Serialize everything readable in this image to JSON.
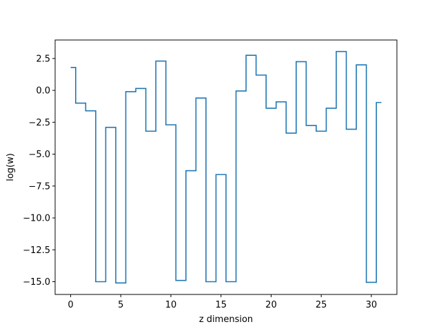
{
  "chart_data": {
    "type": "line",
    "drawstyle": "steps-mid",
    "xlabel": "z dimension",
    "ylabel": "log(w)",
    "xlim": [
      -1.55,
      32.55
    ],
    "ylim": [
      -16.0,
      3.95
    ],
    "xticks": [
      0,
      5,
      10,
      15,
      20,
      25,
      30
    ],
    "yticks": [
      -15.0,
      -12.5,
      -10.0,
      -7.5,
      -5.0,
      -2.5,
      0.0,
      2.5
    ],
    "xtick_labels": [
      "0",
      "5",
      "10",
      "15",
      "20",
      "25",
      "30"
    ],
    "ytick_labels": [
      "−15.0",
      "−12.5",
      "−10.0",
      "−7.5",
      "−5.0",
      "−2.5",
      "0.0",
      "2.5"
    ],
    "grid": false,
    "series": [
      {
        "color": "#1f77b4",
        "x": [
          0,
          1,
          2,
          3,
          4,
          5,
          6,
          7,
          8,
          9,
          10,
          11,
          12,
          13,
          14,
          15,
          16,
          17,
          18,
          19,
          20,
          21,
          22,
          23,
          24,
          25,
          26,
          27,
          28,
          29,
          30,
          31
        ],
        "values": [
          1.8,
          -1.0,
          -1.6,
          -15.0,
          -2.9,
          -15.1,
          -0.1,
          0.15,
          -3.2,
          2.3,
          -2.7,
          -14.9,
          -6.3,
          -0.6,
          -15.0,
          -6.6,
          -15.0,
          -0.05,
          2.75,
          1.2,
          -1.4,
          -0.9,
          -3.35,
          2.25,
          -2.75,
          -3.2,
          -1.4,
          3.05,
          -3.05,
          2.0,
          -15.05,
          -0.95
        ]
      }
    ]
  }
}
